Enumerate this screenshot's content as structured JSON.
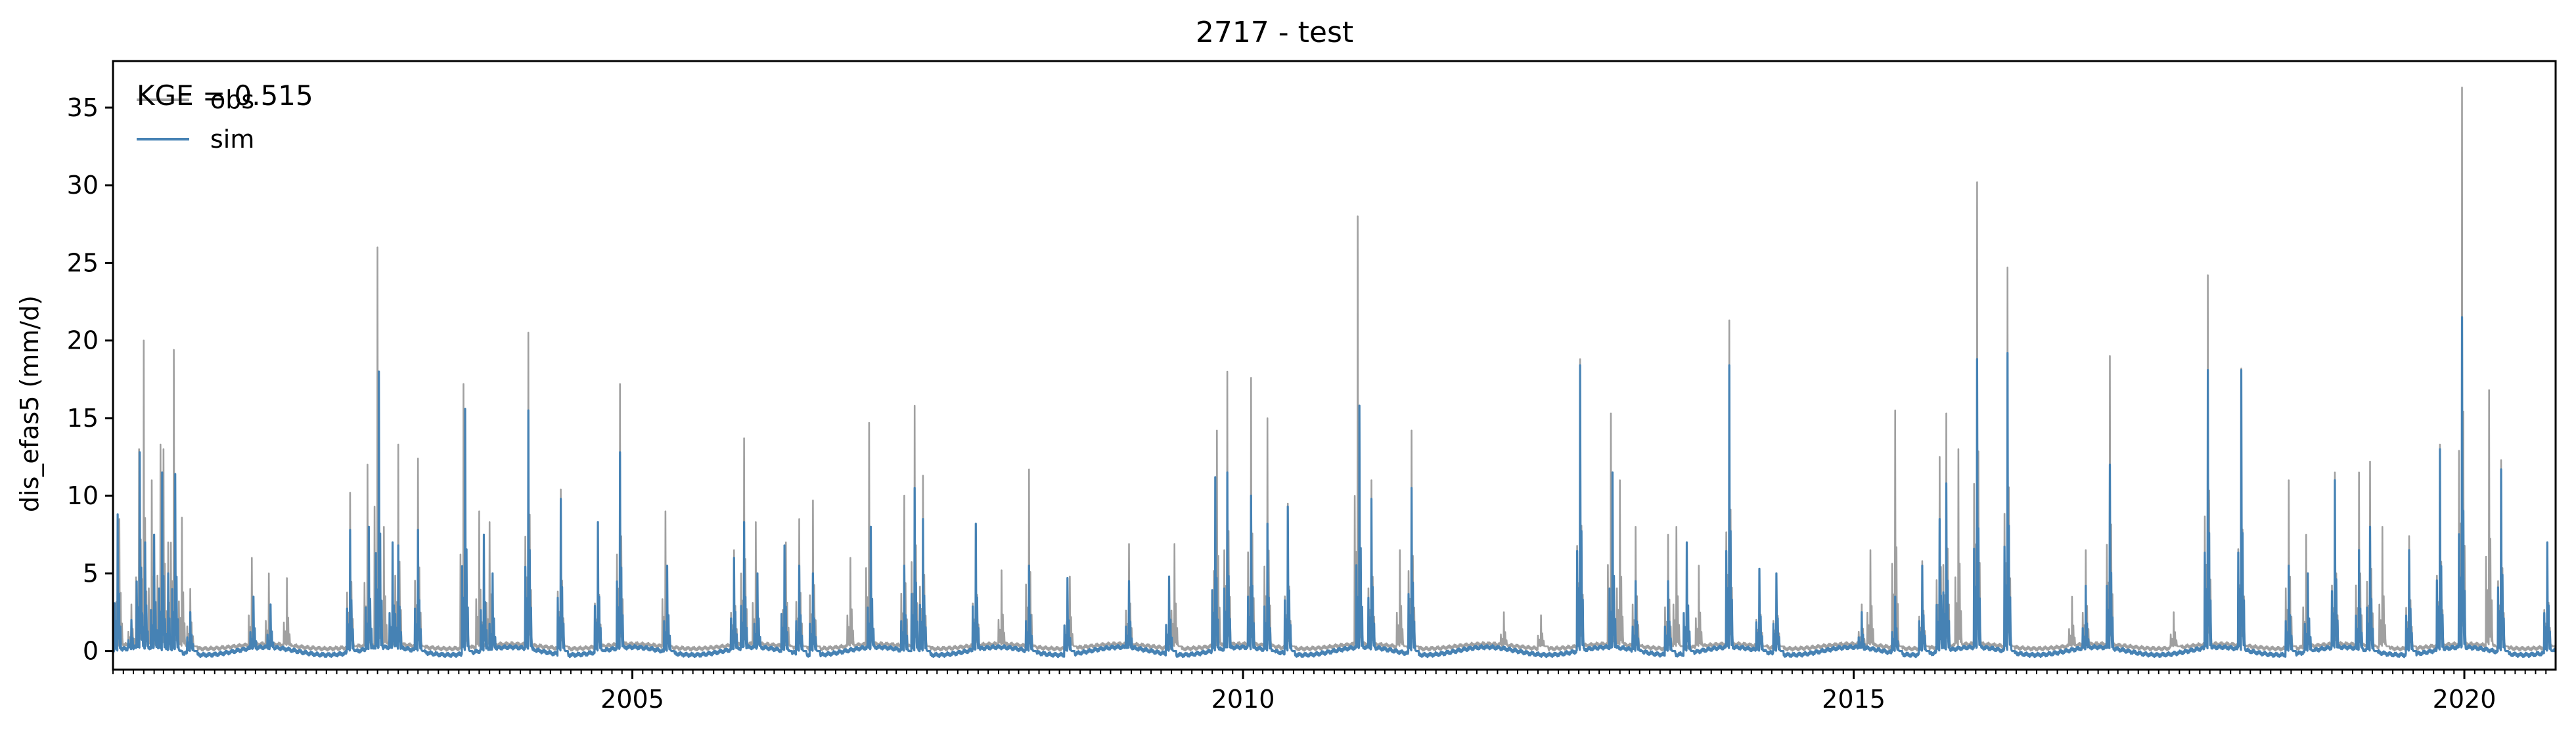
{
  "chart_data": {
    "type": "line",
    "title": "2717 - test",
    "ylabel": "dis_efas5 (mm/d)",
    "xlabel": "",
    "xlim": [
      "2000-10-01",
      "2020-09-30"
    ],
    "ylim": [
      -1.2,
      38
    ],
    "x_ticks": [
      "2005",
      "2010",
      "2015",
      "2020"
    ],
    "y_ticks": [
      0,
      5,
      10,
      15,
      20,
      25,
      30,
      35
    ],
    "grid": false,
    "legend_position": "upper-left",
    "annotation": "KGE = 0.515",
    "series": [
      {
        "name": "obs",
        "color": "#a0a0a0",
        "baseline": 0.3,
        "peaks": [
          [
            "2000-10-20",
            8.5
          ],
          [
            "2000-11-25",
            3.0
          ],
          [
            "2000-12-18",
            13.0
          ],
          [
            "2001-01-01",
            20.0
          ],
          [
            "2001-01-25",
            11.0
          ],
          [
            "2001-02-20",
            13.3
          ],
          [
            "2001-03-01",
            13.0
          ],
          [
            "2001-03-15",
            7.0
          ],
          [
            "2001-04-01",
            19.4
          ],
          [
            "2001-04-25",
            8.6
          ],
          [
            "2001-05-20",
            4.0
          ],
          [
            "2001-11-20",
            6.0
          ],
          [
            "2002-01-10",
            5.0
          ],
          [
            "2002-03-05",
            4.7
          ],
          [
            "2002-09-10",
            10.2
          ],
          [
            "2002-11-01",
            12.0
          ],
          [
            "2002-12-01",
            26.0
          ],
          [
            "2002-12-20",
            8.0
          ],
          [
            "2003-02-01",
            13.3
          ],
          [
            "2003-04-01",
            12.4
          ],
          [
            "2003-08-15",
            17.2
          ],
          [
            "2003-10-01",
            9.0
          ],
          [
            "2003-11-01",
            8.3
          ],
          [
            "2004-02-25",
            20.5
          ],
          [
            "2004-06-01",
            10.4
          ],
          [
            "2004-09-20",
            8.2
          ],
          [
            "2004-11-25",
            17.2
          ],
          [
            "2005-04-10",
            9.0
          ],
          [
            "2005-11-01",
            6.5
          ],
          [
            "2005-12-01",
            13.7
          ],
          [
            "2006-01-05",
            8.3
          ],
          [
            "2006-04-05",
            7.0
          ],
          [
            "2006-05-15",
            8.5
          ],
          [
            "2006-06-25",
            9.7
          ],
          [
            "2006-10-15",
            6.0
          ],
          [
            "2006-12-10",
            14.7
          ],
          [
            "2007-03-25",
            10.0
          ],
          [
            "2007-04-25",
            15.8
          ],
          [
            "2007-05-20",
            11.3
          ],
          [
            "2007-10-25",
            8.2
          ],
          [
            "2008-01-10",
            5.2
          ],
          [
            "2008-04-01",
            11.7
          ],
          [
            "2008-08-01",
            4.8
          ],
          [
            "2009-01-25",
            6.9
          ],
          [
            "2009-06-10",
            6.9
          ],
          [
            "2009-10-15",
            14.2
          ],
          [
            "2009-11-15",
            18.0
          ],
          [
            "2010-01-25",
            17.6
          ],
          [
            "2010-03-15",
            15.0
          ],
          [
            "2010-05-15",
            9.5
          ],
          [
            "2010-12-10",
            28.0
          ],
          [
            "2011-01-20",
            11.0
          ],
          [
            "2011-04-15",
            6.5
          ],
          [
            "2011-05-20",
            14.2
          ],
          [
            "2012-02-20",
            2.5
          ],
          [
            "2012-06-10",
            2.3
          ],
          [
            "2012-10-05",
            18.8
          ],
          [
            "2013-01-05",
            15.3
          ],
          [
            "2013-02-01",
            11.0
          ],
          [
            "2013-03-20",
            8.0
          ],
          [
            "2013-06-25",
            7.5
          ],
          [
            "2013-07-20",
            8.0
          ],
          [
            "2013-09-25",
            5.5
          ],
          [
            "2013-12-25",
            21.3
          ],
          [
            "2014-03-25",
            5.2
          ],
          [
            "2014-05-15",
            5.0
          ],
          [
            "2015-01-25",
            3.0
          ],
          [
            "2015-02-20",
            6.5
          ],
          [
            "2015-05-05",
            15.5
          ],
          [
            "2015-07-25",
            5.8
          ],
          [
            "2015-09-15",
            12.5
          ],
          [
            "2015-10-05",
            15.3
          ],
          [
            "2015-11-10",
            13.0
          ],
          [
            "2016-01-05",
            30.2
          ],
          [
            "2016-04-05",
            24.7
          ],
          [
            "2016-10-15",
            3.5
          ],
          [
            "2016-11-25",
            6.5
          ],
          [
            "2017-02-05",
            19.0
          ],
          [
            "2017-08-15",
            2.5
          ],
          [
            "2017-11-25",
            24.2
          ],
          [
            "2018-03-05",
            18.2
          ],
          [
            "2018-07-25",
            11.0
          ],
          [
            "2018-09-15",
            7.5
          ],
          [
            "2018-12-10",
            11.5
          ],
          [
            "2019-02-20",
            11.5
          ],
          [
            "2019-03-25",
            12.2
          ],
          [
            "2019-05-01",
            8.0
          ],
          [
            "2019-07-20",
            7.4
          ],
          [
            "2019-10-20",
            13.3
          ],
          [
            "2019-12-25",
            36.3
          ],
          [
            "2020-03-15",
            16.8
          ],
          [
            "2020-04-20",
            12.3
          ],
          [
            "2020-09-05",
            7.0
          ]
        ]
      },
      {
        "name": "sim",
        "color": "#4682b4",
        "baseline": 0.0,
        "peaks": [
          [
            "2000-10-15",
            8.8
          ],
          [
            "2000-11-25",
            2.0
          ],
          [
            "2000-12-20",
            12.8
          ],
          [
            "2001-01-05",
            7.0
          ],
          [
            "2001-02-01",
            7.5
          ],
          [
            "2001-02-25",
            11.5
          ],
          [
            "2001-03-15",
            5.0
          ],
          [
            "2001-04-05",
            11.4
          ],
          [
            "2001-05-20",
            2.5
          ],
          [
            "2001-11-25",
            3.5
          ],
          [
            "2002-01-15",
            3.0
          ],
          [
            "2002-09-10",
            7.8
          ],
          [
            "2002-11-05",
            8.0
          ],
          [
            "2002-12-05",
            18.0
          ],
          [
            "2003-01-15",
            7.0
          ],
          [
            "2003-02-01",
            6.8
          ],
          [
            "2003-04-01",
            7.8
          ],
          [
            "2003-08-20",
            15.6
          ],
          [
            "2003-10-15",
            7.5
          ],
          [
            "2003-11-10",
            5.0
          ],
          [
            "2004-02-25",
            15.5
          ],
          [
            "2004-06-01",
            9.8
          ],
          [
            "2004-09-20",
            8.3
          ],
          [
            "2004-11-25",
            12.8
          ],
          [
            "2005-04-15",
            5.5
          ],
          [
            "2005-11-01",
            6.0
          ],
          [
            "2005-12-01",
            8.3
          ],
          [
            "2006-01-10",
            5.0
          ],
          [
            "2006-04-01",
            6.8
          ],
          [
            "2006-05-15",
            5.5
          ],
          [
            "2006-06-25",
            5.0
          ],
          [
            "2006-12-15",
            8.0
          ],
          [
            "2007-03-25",
            5.5
          ],
          [
            "2007-04-25",
            10.5
          ],
          [
            "2007-05-20",
            8.5
          ],
          [
            "2007-10-25",
            8.2
          ],
          [
            "2008-04-01",
            5.5
          ],
          [
            "2008-07-25",
            4.7
          ],
          [
            "2009-01-25",
            4.5
          ],
          [
            "2009-05-25",
            4.8
          ],
          [
            "2009-10-10",
            11.2
          ],
          [
            "2009-11-15",
            11.5
          ],
          [
            "2010-01-25",
            10.0
          ],
          [
            "2010-03-15",
            8.2
          ],
          [
            "2010-05-15",
            9.3
          ],
          [
            "2010-12-15",
            15.8
          ],
          [
            "2011-01-20",
            9.8
          ],
          [
            "2011-05-20",
            10.5
          ],
          [
            "2012-10-05",
            18.4
          ],
          [
            "2013-01-10",
            11.5
          ],
          [
            "2013-03-20",
            4.5
          ],
          [
            "2013-06-25",
            4.5
          ],
          [
            "2013-08-20",
            7.0
          ],
          [
            "2013-12-25",
            18.4
          ],
          [
            "2014-03-25",
            5.3
          ],
          [
            "2014-05-15",
            5.0
          ],
          [
            "2015-01-25",
            2.5
          ],
          [
            "2015-05-05",
            3.5
          ],
          [
            "2015-07-25",
            5.5
          ],
          [
            "2015-09-15",
            8.5
          ],
          [
            "2015-10-05",
            10.8
          ],
          [
            "2016-01-05",
            18.8
          ],
          [
            "2016-04-05",
            19.2
          ],
          [
            "2016-11-25",
            4.2
          ],
          [
            "2017-02-05",
            12.0
          ],
          [
            "2017-11-25",
            18.1
          ],
          [
            "2018-03-05",
            18.1
          ],
          [
            "2018-07-25",
            5.5
          ],
          [
            "2018-09-20",
            5.0
          ],
          [
            "2018-12-10",
            11.0
          ],
          [
            "2019-02-20",
            6.5
          ],
          [
            "2019-03-25",
            8.0
          ],
          [
            "2019-07-20",
            6.5
          ],
          [
            "2019-10-20",
            13.0
          ],
          [
            "2019-12-25",
            21.5
          ],
          [
            "2020-04-20",
            11.7
          ],
          [
            "2020-09-05",
            7.0
          ]
        ]
      }
    ]
  }
}
